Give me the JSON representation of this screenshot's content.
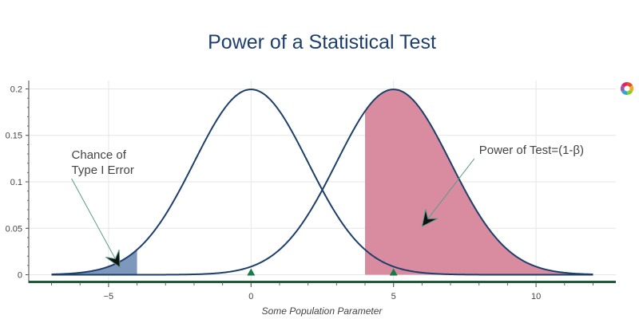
{
  "chart_data": {
    "type": "area",
    "title": "Power of a Statistical Test",
    "xlabel": "Some Population Parameter",
    "ylabel": "",
    "xlim": [
      -7.8,
      12.8
    ],
    "ylim": [
      -0.009,
      0.209
    ],
    "x_ticks": [
      -5,
      0,
      5,
      10
    ],
    "x_tick_labels": [
      "−5",
      "0",
      "5",
      "10"
    ],
    "y_ticks": [
      0,
      0.05,
      0.1,
      0.15,
      0.2
    ],
    "y_tick_labels": [
      "0",
      "0.05",
      "0.1",
      "0.15",
      "0.2"
    ],
    "grid": true,
    "series": [
      {
        "mean": 0,
        "sd": 2,
        "x_range": [
          -7,
          12
        ],
        "color": "#1d3f6a"
      },
      {
        "mean": 5,
        "sd": 2,
        "x_range": [
          -7,
          12
        ],
        "color": "#1d3f6a"
      }
    ],
    "shaded_regions": [
      {
        "curve": 0,
        "x_range": [
          -7,
          -4
        ],
        "color": "#7d97bd"
      },
      {
        "curve": 0,
        "x_range": [
          4,
          12
        ],
        "color": "#7d97bd"
      },
      {
        "curve": 1,
        "x_range": [
          4,
          12
        ],
        "color": "#d98ba0"
      }
    ],
    "markers": [
      {
        "x": 0,
        "y": 0,
        "shape": "triangle",
        "color": "#1a7a4a"
      },
      {
        "x": 5,
        "y": 0,
        "shape": "triangle",
        "color": "#1a7a4a"
      }
    ],
    "annotations": [
      {
        "lines": [
          "Chance of",
          "Type I Error"
        ],
        "text_x": -6.3,
        "text_y": 0.125,
        "arrow_to": [
          -4.6,
          0.008
        ]
      },
      {
        "lines": [
          "Power of Test=(1-β)"
        ],
        "text_x": 8.0,
        "text_y": 0.13,
        "arrow_to": [
          6.0,
          0.052
        ]
      }
    ],
    "baseline_color": "#1f5a3a"
  }
}
